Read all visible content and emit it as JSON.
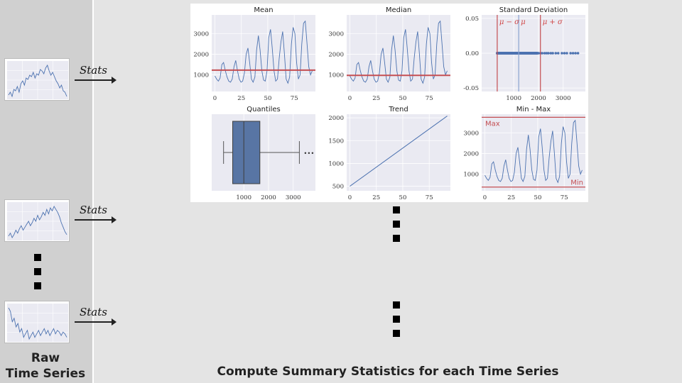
{
  "left": {
    "label_line1": "Raw",
    "label_line2": "Time Series"
  },
  "stats_label": "Stats",
  "caption": "Compute Summary Statistics for each Time Series",
  "colors": {
    "series": "#4c72b0",
    "red": "#c44e52",
    "plot_bg": "#eaeaf2",
    "box": "#5875a4"
  },
  "icons": [
    "arrow-right-icon",
    "ellipsis-dot-icon"
  ],
  "thumbnails": [
    {
      "values": [
        10,
        12,
        9,
        14,
        13,
        16,
        12,
        18,
        20,
        17,
        22,
        21,
        24,
        23,
        26,
        22,
        25,
        24,
        28,
        27,
        25,
        29,
        31,
        27,
        24,
        26,
        23,
        20,
        18,
        15,
        17,
        13,
        12,
        9
      ]
    },
    {
      "values": [
        8,
        10,
        7,
        9,
        12,
        10,
        13,
        15,
        12,
        14,
        16,
        18,
        15,
        17,
        20,
        18,
        22,
        19,
        21,
        24,
        22,
        26,
        23,
        27,
        25,
        28,
        26,
        24,
        21,
        17,
        14,
        11,
        9
      ]
    },
    {
      "values": [
        28,
        26,
        20,
        22,
        17,
        19,
        14,
        16,
        11,
        13,
        15,
        10,
        12,
        14,
        11,
        13,
        15,
        12,
        14,
        16,
        13,
        15,
        12,
        14,
        16,
        13,
        15,
        14,
        12,
        14,
        13,
        11
      ]
    }
  ],
  "chart_data": [
    {
      "type": "line",
      "title": "Mean",
      "x_ticks": [
        0,
        25,
        50,
        75
      ],
      "y_ticks": [
        1000,
        2000,
        3000
      ],
      "xlim": [
        -3,
        95
      ],
      "ylim": [
        200,
        3900
      ],
      "values": [
        950,
        800,
        700,
        850,
        1500,
        1600,
        1200,
        900,
        700,
        650,
        800,
        1400,
        1700,
        1200,
        800,
        650,
        700,
        1100,
        2000,
        2300,
        1600,
        800,
        650,
        900,
        2200,
        2900,
        2200,
        1200,
        750,
        700,
        1200,
        2800,
        3200,
        2300,
        1200,
        700,
        800,
        1800,
        2600,
        3100,
        2000,
        800,
        600,
        900,
        2500,
        3300,
        3000,
        1600,
        800,
        1000,
        2500,
        3500,
        3600,
        2500,
        1400,
        1000,
        1200
      ],
      "reference_line": 1230
    },
    {
      "type": "line",
      "title": "Median",
      "x_ticks": [
        0,
        25,
        50,
        75
      ],
      "y_ticks": [
        1000,
        2000,
        3000
      ],
      "xlim": [
        -3,
        95
      ],
      "ylim": [
        200,
        3900
      ],
      "values": [
        950,
        800,
        700,
        850,
        1500,
        1600,
        1200,
        900,
        700,
        650,
        800,
        1400,
        1700,
        1200,
        800,
        650,
        700,
        1100,
        2000,
        2300,
        1600,
        800,
        650,
        900,
        2200,
        2900,
        2200,
        1200,
        750,
        700,
        1200,
        2800,
        3200,
        2300,
        1200,
        700,
        800,
        1800,
        2600,
        3100,
        2000,
        800,
        600,
        900,
        2500,
        3300,
        3000,
        1600,
        800,
        1000,
        2500,
        3500,
        3600,
        2500,
        1400,
        1000,
        1200
      ],
      "reference_line": 980
    },
    {
      "type": "scatter",
      "title": "Standard Deviation",
      "x_ticks": [
        1000,
        2000,
        3000
      ],
      "y_tick_labels": [
        "0.05",
        "0.00",
        "-0.05"
      ],
      "xlim": [
        -300,
        3900
      ],
      "ylim": [
        -0.055,
        0.055
      ],
      "x_dense_range": [
        330,
        1950
      ],
      "x_sparse": [
        2000,
        2080,
        2150,
        2250,
        2330,
        2400,
        2500,
        2580,
        2700,
        2800,
        2950,
        3050,
        3150,
        3300,
        3400,
        3500,
        3600
      ],
      "mean": 1200,
      "minus_sigma": 330,
      "plus_sigma": 2080,
      "labels": {
        "minus": "μ − σ",
        "mu": "μ",
        "plus": "μ + σ"
      }
    },
    {
      "type": "box",
      "title": "Quantiles",
      "x_ticks": [
        1000,
        2000,
        3000
      ],
      "xlim": [
        -300,
        3900
      ],
      "whisker_low": 180,
      "q1": 550,
      "median": 1000,
      "q3": 1650,
      "whisker_high": 3250,
      "outlier_label": "•••"
    },
    {
      "type": "line",
      "title": "Trend",
      "x_ticks": [
        0,
        25,
        50,
        75
      ],
      "y_ticks": [
        500,
        1000,
        1500,
        2000
      ],
      "xlim": [
        -3,
        95
      ],
      "ylim": [
        400,
        2080
      ],
      "x": [
        0,
        92
      ],
      "y": [
        500,
        2040
      ]
    },
    {
      "type": "line",
      "title": "Min - Max",
      "x_ticks": [
        0,
        25,
        50,
        75
      ],
      "y_ticks": [
        1000,
        2000,
        3000
      ],
      "xlim": [
        -3,
        95
      ],
      "ylim": [
        200,
        3900
      ],
      "values": [
        950,
        800,
        700,
        850,
        1500,
        1600,
        1200,
        900,
        700,
        650,
        800,
        1400,
        1700,
        1200,
        800,
        650,
        700,
        1100,
        2000,
        2300,
        1600,
        800,
        650,
        900,
        2200,
        2900,
        2200,
        1200,
        750,
        700,
        1200,
        2800,
        3200,
        2300,
        1200,
        700,
        800,
        1800,
        2600,
        3100,
        2000,
        800,
        600,
        900,
        2500,
        3300,
        3000,
        1600,
        800,
        1000,
        2500,
        3500,
        3600,
        2500,
        1400,
        1000,
        1200
      ],
      "max_line": 3750,
      "min_line": 380,
      "max_label": "Max",
      "min_label": "Min"
    }
  ]
}
